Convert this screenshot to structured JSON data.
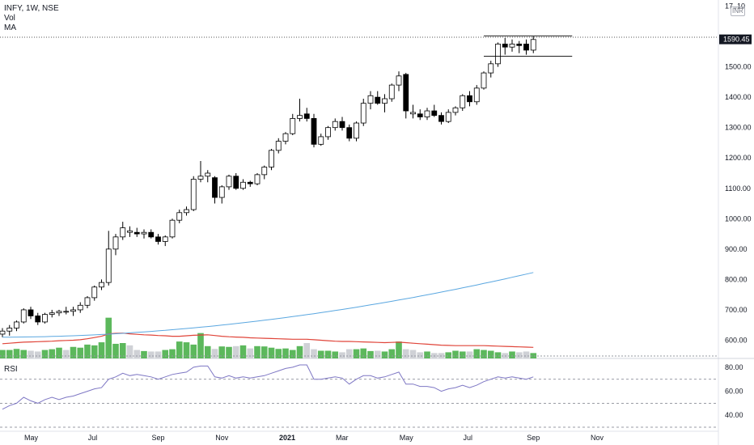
{
  "legend": {
    "symbol": "INFY, 1W, NSE",
    "volume_label": "Vol",
    "ma_label": "MA"
  },
  "currency_badge": "INR",
  "rsi_label": "RSI",
  "last_price_label": "1590.45",
  "colors": {
    "up_candle": "#ffffff",
    "down_candle": "#000000",
    "volume_up": "#5cb85c",
    "volume_down": "#cfd1d6",
    "ma_long": "#5aa7e0",
    "ma_volume": "#e0453a",
    "rsi_line": "#7e77c4",
    "price_tag_bg": "#131722"
  },
  "chart_data": [
    {
      "type": "candlestick",
      "title": "INFY, 1W, NSE",
      "price_axis_ticks": [
        1700,
        1600,
        1500,
        1400,
        1300,
        1200,
        1100,
        1000,
        900,
        800,
        700,
        600
      ],
      "price_axis_labels": [
        "17..10",
        "",
        "1500.00",
        "1400.00",
        "1300.00",
        "1200.00",
        "1100.00",
        "1000.00",
        "900.00",
        "800.00",
        "700.00",
        "600.00"
      ],
      "ylim": [
        540,
        1720
      ],
      "x_tick_labels": [
        "May",
        "Jul",
        "Sep",
        "Nov",
        "2021",
        "Mar",
        "May",
        "Jul",
        "Sep",
        "Nov"
      ],
      "x_tick_weeks": [
        4,
        13,
        22,
        31,
        40,
        48,
        57,
        66,
        75,
        84
      ],
      "ohlc": [
        [
          620,
          640,
          610,
          630
        ],
        [
          630,
          650,
          615,
          640
        ],
        [
          640,
          665,
          630,
          660
        ],
        [
          660,
          705,
          655,
          700
        ],
        [
          700,
          710,
          670,
          680
        ],
        [
          680,
          690,
          650,
          660
        ],
        [
          660,
          690,
          655,
          685
        ],
        [
          685,
          700,
          675,
          690
        ],
        [
          690,
          700,
          680,
          695
        ],
        [
          695,
          710,
          685,
          695
        ],
        [
          695,
          710,
          680,
          700
        ],
        [
          700,
          725,
          690,
          715
        ],
        [
          715,
          745,
          705,
          740
        ],
        [
          740,
          780,
          730,
          775
        ],
        [
          775,
          800,
          765,
          790
        ],
        [
          790,
          960,
          780,
          900
        ],
        [
          900,
          950,
          880,
          940
        ],
        [
          940,
          990,
          930,
          970
        ],
        [
          955,
          975,
          940,
          960
        ],
        [
          955,
          970,
          940,
          950
        ],
        [
          950,
          965,
          935,
          955
        ],
        [
          955,
          965,
          935,
          940
        ],
        [
          940,
          950,
          915,
          925
        ],
        [
          925,
          945,
          910,
          940
        ],
        [
          940,
          1000,
          935,
          995
        ],
        [
          995,
          1030,
          985,
          1020
        ],
        [
          1020,
          1040,
          1010,
          1030
        ],
        [
          1030,
          1140,
          1025,
          1130
        ],
        [
          1130,
          1190,
          1120,
          1140
        ],
        [
          1140,
          1160,
          1120,
          1150
        ],
        [
          1135,
          1140,
          1050,
          1070
        ],
        [
          1070,
          1110,
          1050,
          1105
        ],
        [
          1105,
          1145,
          1095,
          1140
        ],
        [
          1140,
          1150,
          1095,
          1100
        ],
        [
          1100,
          1130,
          1095,
          1120
        ],
        [
          1120,
          1125,
          1105,
          1115
        ],
        [
          1115,
          1150,
          1110,
          1145
        ],
        [
          1145,
          1175,
          1130,
          1170
        ],
        [
          1170,
          1230,
          1160,
          1225
        ],
        [
          1225,
          1265,
          1215,
          1255
        ],
        [
          1255,
          1285,
          1245,
          1280
        ],
        [
          1280,
          1345,
          1275,
          1330
        ],
        [
          1330,
          1395,
          1320,
          1340
        ],
        [
          1345,
          1365,
          1320,
          1330
        ],
        [
          1330,
          1345,
          1235,
          1245
        ],
        [
          1245,
          1280,
          1240,
          1270
        ],
        [
          1270,
          1305,
          1260,
          1300
        ],
        [
          1300,
          1330,
          1290,
          1320
        ],
        [
          1320,
          1335,
          1290,
          1300
        ],
        [
          1300,
          1310,
          1255,
          1265
        ],
        [
          1265,
          1320,
          1255,
          1315
        ],
        [
          1315,
          1395,
          1305,
          1380
        ],
        [
          1380,
          1420,
          1360,
          1405
        ],
        [
          1400,
          1420,
          1375,
          1380
        ],
        [
          1380,
          1410,
          1350,
          1395
        ],
        [
          1395,
          1445,
          1385,
          1440
        ],
        [
          1440,
          1485,
          1420,
          1470
        ],
        [
          1475,
          1480,
          1330,
          1355
        ],
        [
          1345,
          1375,
          1330,
          1350
        ],
        [
          1345,
          1360,
          1325,
          1335
        ],
        [
          1335,
          1365,
          1325,
          1355
        ],
        [
          1355,
          1375,
          1335,
          1340
        ],
        [
          1340,
          1350,
          1310,
          1320
        ],
        [
          1320,
          1360,
          1315,
          1350
        ],
        [
          1350,
          1370,
          1340,
          1365
        ],
        [
          1365,
          1410,
          1355,
          1405
        ],
        [
          1405,
          1420,
          1370,
          1385
        ],
        [
          1385,
          1440,
          1375,
          1430
        ],
        [
          1430,
          1485,
          1425,
          1480
        ],
        [
          1480,
          1520,
          1465,
          1510
        ],
        [
          1510,
          1580,
          1500,
          1575
        ],
        [
          1575,
          1595,
          1540,
          1565
        ],
        [
          1565,
          1590,
          1550,
          1575
        ],
        [
          1575,
          1585,
          1545,
          1570
        ],
        [
          1575,
          1590,
          1540,
          1555
        ],
        [
          1555,
          1600,
          1545,
          1590
        ]
      ],
      "channel": {
        "high": 1602,
        "low": 1535
      },
      "last_price": 1590.45,
      "long_ma": {
        "start": 610,
        "end": 823
      }
    },
    {
      "type": "bar",
      "title": "Vol",
      "volume_relative": [
        0.55,
        0.55,
        0.62,
        0.55,
        0.5,
        0.45,
        0.55,
        0.6,
        0.7,
        0.55,
        0.75,
        0.7,
        0.9,
        0.85,
        1.05,
        2.65,
        0.95,
        1.0,
        0.85,
        0.55,
        0.48,
        0.45,
        0.45,
        0.55,
        0.6,
        1.1,
        1.05,
        0.9,
        1.65,
        0.8,
        0.62,
        0.78,
        0.75,
        0.8,
        0.85,
        0.65,
        0.8,
        0.78,
        0.7,
        0.62,
        0.65,
        0.55,
        0.8,
        1.0,
        0.6,
        0.5,
        0.5,
        0.45,
        0.4,
        0.6,
        0.6,
        0.65,
        0.48,
        0.5,
        0.45,
        0.6,
        1.1,
        0.6,
        0.55,
        0.4,
        0.45,
        0.35,
        0.35,
        0.4,
        0.5,
        0.45,
        0.45,
        0.6,
        0.55,
        0.5,
        0.4,
        0.35,
        0.45,
        0.4,
        0.45,
        0.35
      ],
      "volume_up": [
        true,
        true,
        true,
        true,
        false,
        false,
        true,
        true,
        true,
        false,
        true,
        true,
        true,
        true,
        true,
        true,
        true,
        true,
        false,
        false,
        true,
        false,
        false,
        true,
        true,
        true,
        true,
        true,
        true,
        true,
        false,
        true,
        true,
        false,
        true,
        false,
        true,
        true,
        true,
        true,
        true,
        true,
        true,
        false,
        false,
        true,
        true,
        true,
        false,
        false,
        true,
        true,
        true,
        false,
        true,
        true,
        true,
        false,
        false,
        false,
        true,
        false,
        false,
        true,
        true,
        true,
        false,
        true,
        true,
        true,
        true,
        false,
        true,
        false,
        false,
        true
      ],
      "ma": [
        0.6,
        0.62,
        0.64,
        0.66,
        0.67,
        0.68,
        0.69,
        0.7,
        0.72,
        0.73,
        0.74,
        0.76,
        0.8,
        0.85,
        0.9,
        1.0,
        1.02,
        1.03,
        1.0,
        0.98,
        0.96,
        0.95,
        0.93,
        0.92,
        0.9,
        0.9,
        0.92,
        0.94,
        0.95,
        0.96,
        0.93,
        0.9,
        0.88,
        0.87,
        0.86,
        0.84,
        0.83,
        0.82,
        0.81,
        0.8,
        0.79,
        0.78,
        0.78,
        0.78,
        0.76,
        0.74,
        0.72,
        0.7,
        0.69,
        0.69,
        0.68,
        0.67,
        0.66,
        0.65,
        0.64,
        0.65,
        0.66,
        0.64,
        0.62,
        0.6,
        0.58,
        0.56,
        0.54,
        0.53,
        0.52,
        0.52,
        0.52,
        0.52,
        0.52,
        0.51,
        0.5,
        0.49,
        0.48,
        0.47,
        0.46,
        0.45
      ]
    },
    {
      "type": "line",
      "title": "RSI",
      "y_tick_labels": [
        "80.00",
        "60.00",
        "40.00"
      ],
      "y_ticks": [
        80,
        60,
        40
      ],
      "ylim": [
        30,
        84
      ],
      "bands": [
        70,
        50,
        30
      ],
      "values": [
        45,
        48,
        50,
        55,
        52,
        50,
        53,
        55,
        53,
        55,
        56,
        58,
        60,
        62,
        63,
        70,
        72,
        75,
        73,
        74,
        73,
        72,
        70,
        72,
        74,
        75,
        76,
        80,
        81,
        81,
        72,
        71,
        73,
        71,
        72,
        71,
        72,
        73,
        75,
        77,
        79,
        80,
        82,
        82,
        70,
        70,
        71,
        72,
        71,
        66,
        70,
        73,
        73,
        71,
        72,
        74,
        76,
        66,
        66,
        64,
        64,
        63,
        60,
        62,
        63,
        65,
        63,
        65,
        68,
        70,
        72,
        71,
        72,
        71,
        70,
        72
      ]
    }
  ]
}
